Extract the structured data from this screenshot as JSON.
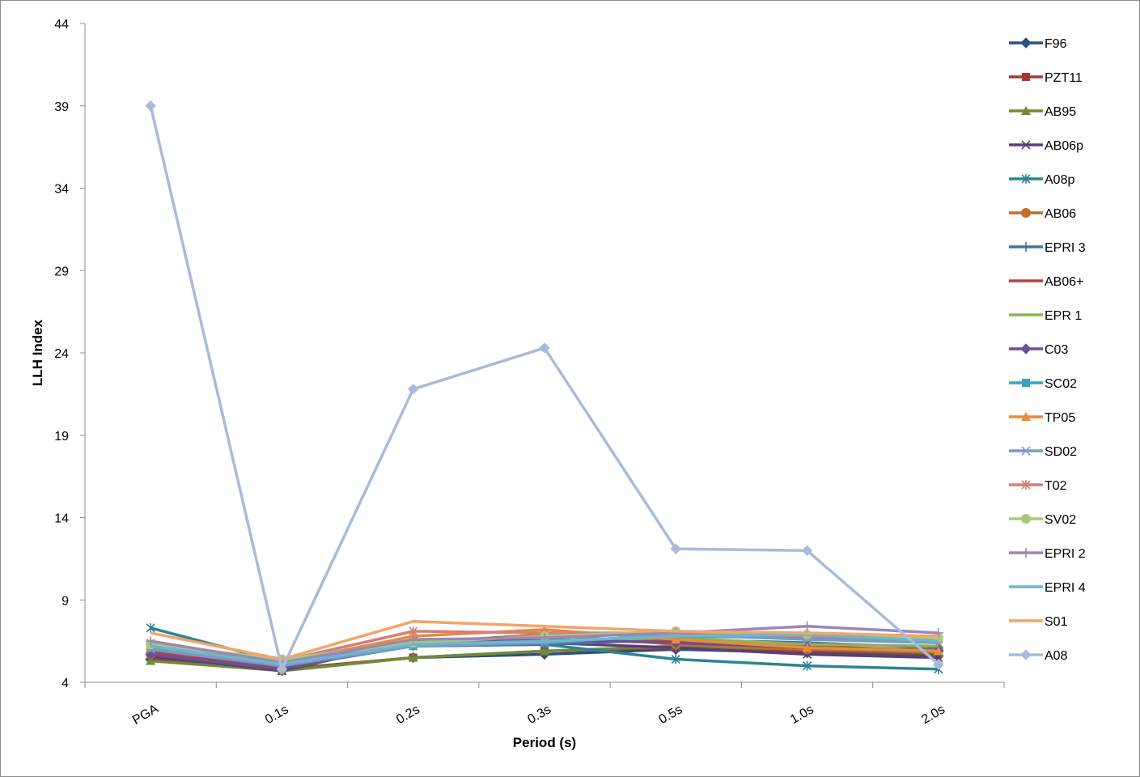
{
  "chart_data": {
    "type": "line",
    "title": "",
    "xlabel": "Period (s)",
    "ylabel": "LLH Index",
    "categories": [
      "PGA",
      "0.1s",
      "0.2s",
      "0.3s",
      "0.5s",
      "1.0s",
      "2.0s"
    ],
    "ylim": [
      4,
      44
    ],
    "yticks": [
      4,
      9,
      14,
      19,
      24,
      29,
      34,
      39,
      44
    ],
    "grid": false,
    "legend": "right",
    "series": [
      {
        "name": "F96",
        "color": "#2e4f7e",
        "marker": "diamond",
        "values": [
          5.4,
          4.7,
          5.5,
          5.7,
          6.0,
          5.8,
          5.6
        ]
      },
      {
        "name": "PZT11",
        "color": "#a33a37",
        "marker": "square",
        "values": [
          5.5,
          4.8,
          5.5,
          5.9,
          6.1,
          5.9,
          5.7
        ]
      },
      {
        "name": "AB95",
        "color": "#6e8b36",
        "marker": "triangle",
        "values": [
          5.3,
          4.7,
          5.5,
          5.9,
          6.2,
          6.0,
          5.8
        ]
      },
      {
        "name": "AB06p",
        "color": "#57407a",
        "marker": "x",
        "values": [
          5.6,
          4.7,
          6.5,
          6.4,
          6.1,
          5.7,
          5.5
        ]
      },
      {
        "name": "A08p",
        "color": "#2c8495",
        "marker": "star",
        "values": [
          7.3,
          5.2,
          6.2,
          6.3,
          5.4,
          5.0,
          4.8
        ]
      },
      {
        "name": "AB06",
        "color": "#c26f2c",
        "marker": "circle",
        "values": [
          5.7,
          4.8,
          6.4,
          6.9,
          6.3,
          6.0,
          6.0
        ]
      },
      {
        "name": "EPRI 3",
        "color": "#4470a8",
        "marker": "plus",
        "values": [
          5.8,
          4.9,
          6.2,
          6.3,
          6.6,
          6.4,
          6.1
        ]
      },
      {
        "name": "AB06+",
        "color": "#b5403f",
        "marker": "none",
        "values": [
          5.9,
          4.9,
          6.6,
          6.6,
          6.5,
          6.2,
          5.9
        ]
      },
      {
        "name": "EPR 1",
        "color": "#8fb352",
        "marker": "none",
        "values": [
          6.0,
          5.0,
          6.4,
          6.5,
          6.7,
          6.3,
          6.2
        ]
      },
      {
        "name": "C03",
        "color": "#6e4f91",
        "marker": "diamond",
        "values": [
          5.7,
          4.8,
          6.5,
          6.6,
          6.4,
          6.1,
          5.9
        ]
      },
      {
        "name": "SC02",
        "color": "#3aa3bb",
        "marker": "square",
        "values": [
          6.1,
          5.1,
          6.2,
          6.5,
          6.8,
          6.7,
          6.6
        ]
      },
      {
        "name": "TP05",
        "color": "#ea8a3a",
        "marker": "triangle",
        "values": [
          6.2,
          5.2,
          6.8,
          7.2,
          6.6,
          6.1,
          5.9
        ]
      },
      {
        "name": "SD02",
        "color": "#7a98c8",
        "marker": "x",
        "values": [
          6.0,
          5.0,
          6.2,
          6.4,
          6.9,
          6.6,
          6.4
        ]
      },
      {
        "name": "T02",
        "color": "#d27f7d",
        "marker": "star",
        "values": [
          6.4,
          5.3,
          7.1,
          7.0,
          7.0,
          6.8,
          6.6
        ]
      },
      {
        "name": "SV02",
        "color": "#a9c97a",
        "marker": "circle",
        "values": [
          6.3,
          5.4,
          6.4,
          6.8,
          7.1,
          6.9,
          6.7
        ]
      },
      {
        "name": "EPRI 2",
        "color": "#9b87b8",
        "marker": "plus",
        "values": [
          6.5,
          5.2,
          6.6,
          6.7,
          7.0,
          7.4,
          7.0
        ]
      },
      {
        "name": "EPRI 4",
        "color": "#6ab7cc",
        "marker": "none",
        "values": [
          6.2,
          5.1,
          6.3,
          6.5,
          6.8,
          6.9,
          6.5
        ]
      },
      {
        "name": "S01",
        "color": "#f4a46a",
        "marker": "none",
        "values": [
          7.0,
          5.4,
          7.7,
          7.4,
          7.1,
          7.0,
          6.8
        ]
      },
      {
        "name": "A08",
        "color": "#a9bbd9",
        "marker": "diamond",
        "values": [
          39.0,
          4.8,
          21.8,
          24.3,
          12.1,
          12.0,
          5.1
        ]
      }
    ]
  }
}
